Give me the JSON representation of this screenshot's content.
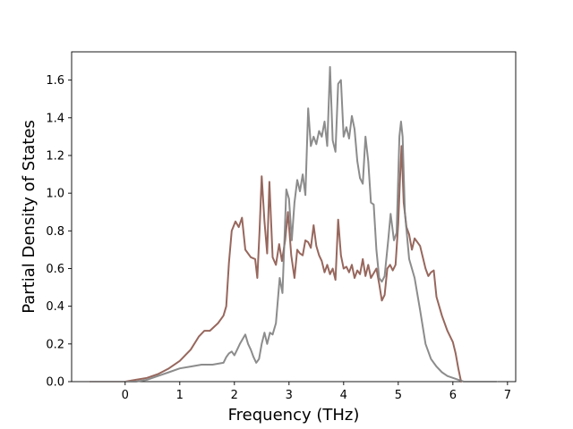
{
  "chart_data": {
    "type": "line",
    "xlabel": "Frequency (THz)",
    "ylabel": "Partial Density of States",
    "xlim": [
      -0.98,
      7.15
    ],
    "ylim": [
      0.0,
      1.75
    ],
    "x_ticks": [
      0,
      1,
      2,
      3,
      4,
      5,
      6,
      7
    ],
    "y_ticks": [
      0.0,
      0.2,
      0.4,
      0.6,
      0.8,
      1.0,
      1.2,
      1.4,
      1.6
    ],
    "grid": false,
    "legend": "none",
    "series": [
      {
        "color": "#8c564b",
        "points": [
          [
            -0.65,
            0.0
          ],
          [
            0.0,
            0.0
          ],
          [
            0.2,
            0.01
          ],
          [
            0.4,
            0.02
          ],
          [
            0.6,
            0.04
          ],
          [
            0.8,
            0.07
          ],
          [
            1.0,
            0.11
          ],
          [
            1.2,
            0.17
          ],
          [
            1.35,
            0.24
          ],
          [
            1.45,
            0.27
          ],
          [
            1.55,
            0.27
          ],
          [
            1.7,
            0.31
          ],
          [
            1.8,
            0.35
          ],
          [
            1.85,
            0.4
          ],
          [
            1.9,
            0.63
          ],
          [
            1.95,
            0.8
          ],
          [
            2.02,
            0.85
          ],
          [
            2.08,
            0.82
          ],
          [
            2.14,
            0.87
          ],
          [
            2.2,
            0.7
          ],
          [
            2.3,
            0.66
          ],
          [
            2.38,
            0.65
          ],
          [
            2.42,
            0.55
          ],
          [
            2.46,
            0.8
          ],
          [
            2.5,
            1.09
          ],
          [
            2.55,
            0.85
          ],
          [
            2.6,
            0.68
          ],
          [
            2.64,
            1.06
          ],
          [
            2.7,
            0.66
          ],
          [
            2.76,
            0.62
          ],
          [
            2.82,
            0.73
          ],
          [
            2.87,
            0.64
          ],
          [
            2.93,
            0.75
          ],
          [
            2.98,
            0.9
          ],
          [
            3.04,
            0.67
          ],
          [
            3.1,
            0.55
          ],
          [
            3.15,
            0.7
          ],
          [
            3.2,
            0.68
          ],
          [
            3.25,
            0.67
          ],
          [
            3.3,
            0.75
          ],
          [
            3.35,
            0.74
          ],
          [
            3.4,
            0.71
          ],
          [
            3.45,
            0.83
          ],
          [
            3.5,
            0.72
          ],
          [
            3.55,
            0.67
          ],
          [
            3.6,
            0.64
          ],
          [
            3.65,
            0.58
          ],
          [
            3.7,
            0.62
          ],
          [
            3.75,
            0.57
          ],
          [
            3.8,
            0.6
          ],
          [
            3.85,
            0.54
          ],
          [
            3.9,
            0.86
          ],
          [
            3.95,
            0.67
          ],
          [
            4.0,
            0.6
          ],
          [
            4.05,
            0.61
          ],
          [
            4.1,
            0.58
          ],
          [
            4.15,
            0.62
          ],
          [
            4.2,
            0.55
          ],
          [
            4.25,
            0.59
          ],
          [
            4.3,
            0.57
          ],
          [
            4.35,
            0.65
          ],
          [
            4.4,
            0.56
          ],
          [
            4.45,
            0.62
          ],
          [
            4.5,
            0.55
          ],
          [
            4.6,
            0.6
          ],
          [
            4.65,
            0.52
          ],
          [
            4.7,
            0.43
          ],
          [
            4.75,
            0.46
          ],
          [
            4.8,
            0.6
          ],
          [
            4.85,
            0.62
          ],
          [
            4.9,
            0.59
          ],
          [
            4.95,
            0.62
          ],
          [
            5.0,
            0.84
          ],
          [
            5.03,
            1.07
          ],
          [
            5.06,
            1.25
          ],
          [
            5.1,
            0.95
          ],
          [
            5.15,
            0.82
          ],
          [
            5.2,
            0.78
          ],
          [
            5.25,
            0.7
          ],
          [
            5.3,
            0.76
          ],
          [
            5.4,
            0.72
          ],
          [
            5.5,
            0.6
          ],
          [
            5.55,
            0.56
          ],
          [
            5.6,
            0.58
          ],
          [
            5.65,
            0.59
          ],
          [
            5.7,
            0.45
          ],
          [
            5.8,
            0.35
          ],
          [
            5.9,
            0.27
          ],
          [
            6.0,
            0.21
          ],
          [
            6.05,
            0.15
          ],
          [
            6.1,
            0.07
          ],
          [
            6.15,
            0.0
          ]
        ]
      },
      {
        "color": "#7f7f7f",
        "points": [
          [
            -0.65,
            0.0
          ],
          [
            0.0,
            0.0
          ],
          [
            0.2,
            0.0
          ],
          [
            0.4,
            0.01
          ],
          [
            0.6,
            0.03
          ],
          [
            0.8,
            0.05
          ],
          [
            1.0,
            0.07
          ],
          [
            1.2,
            0.08
          ],
          [
            1.4,
            0.09
          ],
          [
            1.6,
            0.09
          ],
          [
            1.8,
            0.1
          ],
          [
            1.85,
            0.13
          ],
          [
            1.9,
            0.15
          ],
          [
            1.95,
            0.16
          ],
          [
            2.0,
            0.14
          ],
          [
            2.05,
            0.17
          ],
          [
            2.1,
            0.2
          ],
          [
            2.14,
            0.22
          ],
          [
            2.2,
            0.25
          ],
          [
            2.25,
            0.2
          ],
          [
            2.3,
            0.17
          ],
          [
            2.35,
            0.13
          ],
          [
            2.4,
            0.1
          ],
          [
            2.45,
            0.12
          ],
          [
            2.5,
            0.2
          ],
          [
            2.55,
            0.26
          ],
          [
            2.6,
            0.2
          ],
          [
            2.65,
            0.26
          ],
          [
            2.7,
            0.25
          ],
          [
            2.76,
            0.31
          ],
          [
            2.83,
            0.55
          ],
          [
            2.88,
            0.47
          ],
          [
            2.95,
            1.02
          ],
          [
            3.0,
            0.97
          ],
          [
            3.05,
            0.75
          ],
          [
            3.1,
            0.95
          ],
          [
            3.15,
            1.07
          ],
          [
            3.2,
            1.01
          ],
          [
            3.25,
            1.1
          ],
          [
            3.3,
            0.99
          ],
          [
            3.35,
            1.45
          ],
          [
            3.4,
            1.25
          ],
          [
            3.45,
            1.3
          ],
          [
            3.5,
            1.26
          ],
          [
            3.55,
            1.33
          ],
          [
            3.6,
            1.3
          ],
          [
            3.65,
            1.38
          ],
          [
            3.7,
            1.25
          ],
          [
            3.75,
            1.67
          ],
          [
            3.8,
            1.28
          ],
          [
            3.85,
            1.22
          ],
          [
            3.9,
            1.58
          ],
          [
            3.95,
            1.6
          ],
          [
            4.0,
            1.3
          ],
          [
            4.05,
            1.35
          ],
          [
            4.1,
            1.29
          ],
          [
            4.15,
            1.41
          ],
          [
            4.2,
            1.34
          ],
          [
            4.25,
            1.17
          ],
          [
            4.3,
            1.08
          ],
          [
            4.35,
            1.05
          ],
          [
            4.4,
            1.3
          ],
          [
            4.45,
            1.17
          ],
          [
            4.5,
            0.95
          ],
          [
            4.55,
            0.94
          ],
          [
            4.6,
            0.7
          ],
          [
            4.65,
            0.55
          ],
          [
            4.7,
            0.53
          ],
          [
            4.75,
            0.56
          ],
          [
            4.82,
            0.76
          ],
          [
            4.86,
            0.89
          ],
          [
            4.92,
            0.75
          ],
          [
            4.97,
            0.79
          ],
          [
            5.02,
            1.3
          ],
          [
            5.05,
            1.38
          ],
          [
            5.08,
            1.3
          ],
          [
            5.12,
            0.9
          ],
          [
            5.2,
            0.65
          ],
          [
            5.3,
            0.55
          ],
          [
            5.4,
            0.38
          ],
          [
            5.5,
            0.2
          ],
          [
            5.6,
            0.12
          ],
          [
            5.7,
            0.08
          ],
          [
            5.8,
            0.05
          ],
          [
            5.9,
            0.03
          ],
          [
            6.0,
            0.02
          ],
          [
            6.1,
            0.01
          ],
          [
            6.2,
            0.0
          ],
          [
            6.8,
            0.0
          ]
        ]
      }
    ]
  }
}
